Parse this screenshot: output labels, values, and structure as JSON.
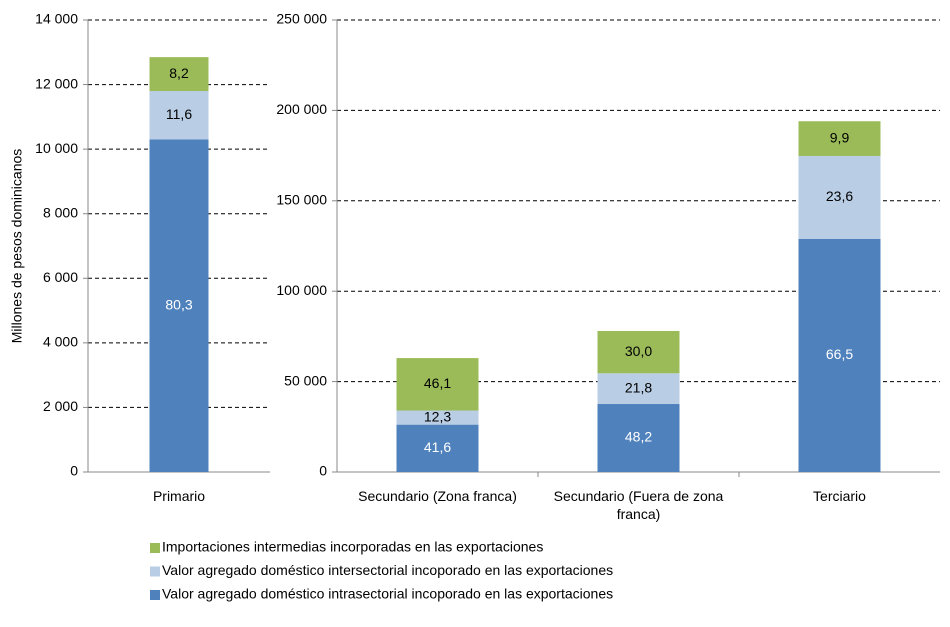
{
  "chart_data": [
    {
      "type": "stacked_bar",
      "y_label": "Millones de pesos dominicanos",
      "categories": [
        "Primario"
      ],
      "ylim": [
        0,
        14000
      ],
      "yticks": [
        0,
        {
          "value": 2000,
          "label": "2 000"
        },
        {
          "value": 4000,
          "label": "4 000"
        },
        {
          "value": 6000,
          "label": "6 000"
        },
        {
          "value": 8000,
          "label": "8 000"
        },
        {
          "value": 10000,
          "label": "10 000"
        },
        {
          "value": 12000,
          "label": "12 000"
        },
        {
          "value": 14000,
          "label": "14 000"
        }
      ],
      "grid": true,
      "series": [
        {
          "name": "Valor agregado doméstico intrasectorial incoporado en las exportaciones",
          "color": "#4f81bd",
          "label_color": "#ffffff",
          "values": [
            10300
          ],
          "shares": [
            80.3
          ],
          "share_labels": [
            "80,3"
          ]
        },
        {
          "name": "Valor agregado doméstico intersectorial incoporado en las exportaciones",
          "color": "#b9cde5",
          "label_color": "#000000",
          "values": [
            1500
          ],
          "shares": [
            11.6
          ],
          "share_labels": [
            "11,6"
          ]
        },
        {
          "name": "Importaciones intermedias incorporadas en las exportaciones",
          "color": "#9bbb59",
          "label_color": "#000000",
          "values": [
            1050
          ],
          "shares": [
            8.2
          ],
          "share_labels": [
            "8,2"
          ]
        }
      ]
    },
    {
      "type": "stacked_bar",
      "categories": [
        "Secundario (Zona franca)",
        "Secundario (Fuera de zona franca)",
        "Terciario"
      ],
      "ylim": [
        0,
        250000
      ],
      "yticks": [
        0,
        {
          "value": 50000,
          "label": "50 000"
        },
        {
          "value": 100000,
          "label": "100 000"
        },
        {
          "value": 150000,
          "label": "150 000"
        },
        {
          "value": 200000,
          "label": "200 000"
        },
        {
          "value": 250000,
          "label": "250 000"
        }
      ],
      "grid": true,
      "series": [
        {
          "color": "#4f81bd",
          "label_color": "#ffffff",
          "values": [
            26200,
            37600,
            129000
          ],
          "shares": [
            41.6,
            48.2,
            66.5
          ],
          "share_labels": [
            "41,6",
            "48,2",
            "66,5"
          ]
        },
        {
          "color": "#b9cde5",
          "label_color": "#000000",
          "values": [
            7800,
            17000,
            45800
          ],
          "shares": [
            12.3,
            21.8,
            23.6
          ],
          "share_labels": [
            "12,3",
            "21,8",
            "23,6"
          ]
        },
        {
          "color": "#9bbb59",
          "label_color": "#000000",
          "values": [
            29000,
            23400,
            19200
          ],
          "shares": [
            46.1,
            30.0,
            9.9
          ],
          "share_labels": [
            "46,1",
            "30,0",
            "9,9"
          ]
        }
      ]
    }
  ]
}
